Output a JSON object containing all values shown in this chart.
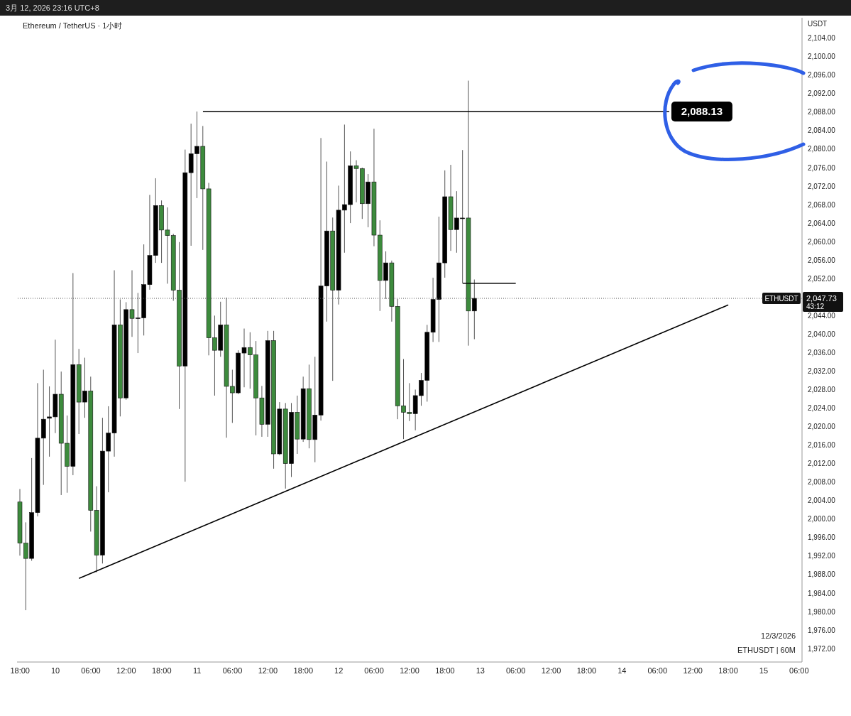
{
  "chart_data": {
    "type": "candlestick",
    "title": "Ethereum / TetherUS · 1小时",
    "subtitle": "3月 12, 2026 23:16 UTC+8",
    "ylabel": "USDT",
    "x": [
      "2026-03-09T18:00",
      "2026-03-09T19:00",
      "2026-03-09T20:00",
      "2026-03-09T21:00",
      "2026-03-09T22:00",
      "2026-03-09T23:00",
      "2026-03-10T00:00",
      "2026-03-10T01:00",
      "2026-03-10T02:00",
      "2026-03-10T03:00",
      "2026-03-10T04:00",
      "2026-03-10T05:00",
      "2026-03-10T06:00",
      "2026-03-10T07:00",
      "2026-03-10T08:00",
      "2026-03-10T09:00",
      "2026-03-10T10:00",
      "2026-03-10T11:00",
      "2026-03-10T12:00",
      "2026-03-10T13:00",
      "2026-03-10T14:00",
      "2026-03-10T15:00",
      "2026-03-10T16:00",
      "2026-03-10T17:00",
      "2026-03-10T18:00",
      "2026-03-10T19:00",
      "2026-03-10T20:00",
      "2026-03-10T21:00",
      "2026-03-10T22:00",
      "2026-03-10T23:00",
      "2026-03-11T00:00",
      "2026-03-11T01:00",
      "2026-03-11T02:00",
      "2026-03-11T03:00",
      "2026-03-11T04:00",
      "2026-03-11T05:00",
      "2026-03-11T06:00",
      "2026-03-11T07:00",
      "2026-03-11T08:00",
      "2026-03-11T09:00",
      "2026-03-11T10:00",
      "2026-03-11T11:00",
      "2026-03-11T12:00",
      "2026-03-11T13:00",
      "2026-03-11T14:00",
      "2026-03-11T15:00",
      "2026-03-11T16:00",
      "2026-03-11T17:00",
      "2026-03-11T18:00",
      "2026-03-11T19:00",
      "2026-03-11T20:00",
      "2026-03-11T21:00",
      "2026-03-11T22:00",
      "2026-03-11T23:00",
      "2026-03-12T00:00",
      "2026-03-12T01:00",
      "2026-03-12T02:00",
      "2026-03-12T03:00",
      "2026-03-12T04:00",
      "2026-03-12T05:00",
      "2026-03-12T06:00",
      "2026-03-12T07:00",
      "2026-03-12T08:00",
      "2026-03-12T09:00",
      "2026-03-12T10:00",
      "2026-03-12T11:00",
      "2026-03-12T12:00",
      "2026-03-12T13:00",
      "2026-03-12T14:00",
      "2026-03-12T15:00",
      "2026-03-12T16:00",
      "2026-03-12T17:00",
      "2026-03-12T18:00",
      "2026-03-12T19:00",
      "2026-03-12T20:00",
      "2026-03-12T21:00",
      "2026-03-12T22:00",
      "2026-03-12T23:00"
    ],
    "ohlc": [
      [
        2003.7,
        2006.5,
        1992.1,
        1994.8
      ],
      [
        1994.8,
        1999.3,
        1980.3,
        1991.5
      ],
      [
        1991.5,
        2013.2,
        1991.0,
        2001.4
      ],
      [
        2001.4,
        2029.4,
        2000.6,
        2017.5
      ],
      [
        2017.5,
        2032.3,
        2007.4,
        2021.6
      ],
      [
        2021.8,
        2028.7,
        2013.5,
        2022.1
      ],
      [
        2022.1,
        2038.8,
        2018.6,
        2027.0
      ],
      [
        2027.0,
        2031.9,
        2005.2,
        2016.4
      ],
      [
        2016.4,
        2022.4,
        2005.7,
        2011.4
      ],
      [
        2011.4,
        2053.2,
        2009.5,
        2033.4
      ],
      [
        2033.4,
        2036.8,
        2018.4,
        2025.3
      ],
      [
        2025.3,
        2034.9,
        2021.9,
        2027.7
      ],
      [
        2027.7,
        2030.8,
        1997.3,
        2001.9
      ],
      [
        2001.9,
        2007.1,
        1988.5,
        1992.2
      ],
      [
        1992.2,
        2021.9,
        1990.4,
        2014.7
      ],
      [
        2014.7,
        2024.4,
        2005.8,
        2018.6
      ],
      [
        2018.6,
        2053.8,
        2013.5,
        2042.0
      ],
      [
        2042.0,
        2047.5,
        2022.2,
        2026.2
      ],
      [
        2026.2,
        2046.9,
        2025.8,
        2045.3
      ],
      [
        2045.3,
        2053.8,
        2039.4,
        2043.4
      ],
      [
        2043.4,
        2048.9,
        2035.9,
        2043.5
      ],
      [
        2043.5,
        2059.4,
        2039.7,
        2050.7
      ],
      [
        2050.7,
        2070.1,
        2049.6,
        2057.0
      ],
      [
        2057.0,
        2073.7,
        2055.4,
        2067.8
      ],
      [
        2067.8,
        2068.9,
        2055.4,
        2062.5
      ],
      [
        2062.5,
        2067.4,
        2050.9,
        2061.3
      ],
      [
        2061.3,
        2061.7,
        2047.2,
        2049.5
      ],
      [
        2049.5,
        2059.9,
        2023.8,
        2033.1
      ],
      [
        2033.1,
        2079.9,
        2008.1,
        2074.9
      ],
      [
        2074.9,
        2085.5,
        2059.1,
        2079.0
      ],
      [
        2079.0,
        2088.13,
        2069.4,
        2080.6
      ],
      [
        2080.6,
        2085.0,
        2058.2,
        2071.4
      ],
      [
        2071.4,
        2072.7,
        2035.4,
        2039.2
      ],
      [
        2039.2,
        2044.0,
        2026.7,
        2036.5
      ],
      [
        2036.5,
        2047.0,
        2035.1,
        2042.0
      ],
      [
        2042.0,
        2047.9,
        2017.6,
        2028.7
      ],
      [
        2028.7,
        2032.3,
        2020.8,
        2027.3
      ],
      [
        2027.3,
        2036.5,
        2027.0,
        2035.9
      ],
      [
        2035.9,
        2041.2,
        2028.5,
        2037.1
      ],
      [
        2037.1,
        2040.4,
        2028.2,
        2035.5
      ],
      [
        2035.5,
        2038.5,
        2018.1,
        2026.2
      ],
      [
        2026.2,
        2028.8,
        2017.8,
        2020.5
      ],
      [
        2020.5,
        2040.7,
        2017.8,
        2038.6
      ],
      [
        2038.6,
        2040.7,
        2010.9,
        2014.1
      ],
      [
        2014.1,
        2025.3,
        2013.8,
        2023.8
      ],
      [
        2023.8,
        2025.1,
        2006.6,
        2012.0
      ],
      [
        2012.0,
        2025.1,
        2009.1,
        2023.1
      ],
      [
        2023.1,
        2026.7,
        2014.1,
        2017.3
      ],
      [
        2017.3,
        2030.8,
        2016.7,
        2028.2
      ],
      [
        2028.2,
        2033.4,
        2015.3,
        2017.2
      ],
      [
        2017.2,
        2035.1,
        2012.3,
        2022.5
      ],
      [
        2022.5,
        2082.4,
        2021.3,
        2050.4
      ],
      [
        2050.4,
        2077.3,
        2042.7,
        2062.3
      ],
      [
        2062.3,
        2065.2,
        2029.9,
        2049.5
      ],
      [
        2049.5,
        2072.1,
        2046.4,
        2066.8
      ],
      [
        2066.8,
        2085.3,
        2057.6,
        2068.0
      ],
      [
        2068.0,
        2079.5,
        2064.0,
        2076.4
      ],
      [
        2076.4,
        2077.6,
        2068.5,
        2075.8
      ],
      [
        2075.8,
        2076.0,
        2064.9,
        2068.2
      ],
      [
        2068.2,
        2074.6,
        2063.1,
        2072.9
      ],
      [
        2072.9,
        2084.4,
        2059.0,
        2061.4
      ],
      [
        2061.4,
        2064.6,
        2045.0,
        2051.6
      ],
      [
        2051.6,
        2057.9,
        2047.6,
        2055.4
      ],
      [
        2055.4,
        2055.9,
        2042.7,
        2046.0
      ],
      [
        2046.0,
        2047.6,
        2021.6,
        2024.5
      ],
      [
        2024.5,
        2034.6,
        2017.3,
        2023.1
      ],
      [
        2023.1,
        2029.4,
        2021.2,
        2022.8
      ],
      [
        2022.8,
        2028.0,
        2019.2,
        2026.7
      ],
      [
        2026.7,
        2031.6,
        2024.5,
        2030.0
      ],
      [
        2030.0,
        2042.0,
        2025.4,
        2040.4
      ],
      [
        2040.4,
        2052.2,
        2038.3,
        2047.5
      ],
      [
        2047.5,
        2065.4,
        2038.3,
        2055.4
      ],
      [
        2055.4,
        2075.4,
        2052.2,
        2069.7
      ],
      [
        2069.7,
        2076.6,
        2058.0,
        2062.6
      ],
      [
        2062.6,
        2070.9,
        2057.6,
        2065.1
      ],
      [
        2065.1,
        2079.8,
        2051.0,
        2065.1
      ],
      [
        2065.1,
        2094.8,
        2037.5,
        2045.0
      ],
      [
        2045.0,
        2051.8,
        2038.9,
        2047.73
      ]
    ],
    "colors": [
      "#3d8b3d",
      "#3d8b3d",
      "#000000",
      "#000000",
      "#000000",
      "#000000",
      "#000000",
      "#3d8b3d",
      "#3d8b3d",
      "#000000",
      "#3d8b3d",
      "#000000",
      "#3d8b3d",
      "#3d8b3d",
      "#000000",
      "#000000",
      "#000000",
      "#3d8b3d",
      "#000000",
      "#3d8b3d",
      "#000000",
      "#000000",
      "#000000",
      "#000000",
      "#3d8b3d",
      "#3d8b3d",
      "#3d8b3d",
      "#3d8b3d",
      "#000000",
      "#000000",
      "#000000",
      "#3d8b3d",
      "#3d8b3d",
      "#3d8b3d",
      "#000000",
      "#3d8b3d",
      "#3d8b3d",
      "#000000",
      "#000000",
      "#3d8b3d",
      "#3d8b3d",
      "#3d8b3d",
      "#000000",
      "#3d8b3d",
      "#000000",
      "#3d8b3d",
      "#000000",
      "#3d8b3d",
      "#000000",
      "#3d8b3d",
      "#000000",
      "#000000",
      "#000000",
      "#3d8b3d",
      "#000000",
      "#000000",
      "#000000",
      "#3d8b3d",
      "#3d8b3d",
      "#000000",
      "#3d8b3d",
      "#3d8b3d",
      "#000000",
      "#3d8b3d",
      "#3d8b3d",
      "#3d8b3d",
      "#3d8b3d",
      "#000000",
      "#000000",
      "#000000",
      "#000000",
      "#000000",
      "#000000",
      "#3d8b3d",
      "#000000",
      "#000000",
      "#3d8b3d",
      "#000000"
    ],
    "series": [
      {
        "type": "line",
        "color": "#000000",
        "x": [
          "2026-03-10T04:00",
          "2026-03-14T18:00"
        ],
        "values": [
          1987.2,
          2046.3
        ]
      },
      {
        "type": "line",
        "color": "#000000",
        "x": [
          "2026-03-11T01:00",
          "2026-03-14T08:00"
        ],
        "values": [
          2088.13,
          2088.13
        ]
      },
      {
        "type": "line",
        "color": "#000000",
        "x": [
          "2026-03-12T21:00",
          "2026-03-13T06:00"
        ],
        "values": [
          2051.0,
          2051.0
        ]
      }
    ],
    "marker": "none",
    "line_style": "solid",
    "xlim": [
      "2026-03-09T17:30",
      "2026-03-15T06:30"
    ],
    "xticks": [
      {
        "value": "2026-03-09T18:00",
        "label": "18:00"
      },
      {
        "value": "2026-03-10T00:00",
        "label": "10"
      },
      {
        "value": "2026-03-10T06:00",
        "label": "06:00"
      },
      {
        "value": "2026-03-10T12:00",
        "label": "12:00"
      },
      {
        "value": "2026-03-10T18:00",
        "label": "18:00"
      },
      {
        "value": "2026-03-11T00:00",
        "label": "11"
      },
      {
        "value": "2026-03-11T06:00",
        "label": "06:00"
      },
      {
        "value": "2026-03-11T12:00",
        "label": "12:00"
      },
      {
        "value": "2026-03-11T18:00",
        "label": "18:00"
      },
      {
        "value": "2026-03-12T00:00",
        "label": "12"
      },
      {
        "value": "2026-03-12T06:00",
        "label": "06:00"
      },
      {
        "value": "2026-03-12T12:00",
        "label": "12:00"
      },
      {
        "value": "2026-03-12T18:00",
        "label": "18:00"
      },
      {
        "value": "2026-03-13T00:00",
        "label": "13"
      },
      {
        "value": "2026-03-13T06:00",
        "label": "06:00"
      },
      {
        "value": "2026-03-13T12:00",
        "label": "12:00"
      },
      {
        "value": "2026-03-13T18:00",
        "label": "18:00"
      },
      {
        "value": "2026-03-14T00:00",
        "label": "14"
      },
      {
        "value": "2026-03-14T06:00",
        "label": "06:00"
      },
      {
        "value": "2026-03-14T12:00",
        "label": "12:00"
      },
      {
        "value": "2026-03-14T18:00",
        "label": "18:00"
      },
      {
        "value": "2026-03-15T00:00",
        "label": "15"
      },
      {
        "value": "2026-03-15T06:00",
        "label": "06:00"
      }
    ],
    "ylim": [
      1969.1,
      2108.4
    ],
    "yticks": [
      {
        "value": 1972,
        "label": "1,972.00"
      },
      {
        "value": 1976,
        "label": "1,976.00"
      },
      {
        "value": 1980,
        "label": "1,980.00"
      },
      {
        "value": 1984,
        "label": "1,984.00"
      },
      {
        "value": 1988,
        "label": "1,988.00"
      },
      {
        "value": 1992,
        "label": "1,992.00"
      },
      {
        "value": 1996,
        "label": "1,996.00"
      },
      {
        "value": 2000,
        "label": "2,000.00"
      },
      {
        "value": 2004,
        "label": "2,004.00"
      },
      {
        "value": 2008,
        "label": "2,008.00"
      },
      {
        "value": 2012,
        "label": "2,012.00"
      },
      {
        "value": 2016,
        "label": "2,016.00"
      },
      {
        "value": 2020,
        "label": "2,020.00"
      },
      {
        "value": 2024,
        "label": "2,024.00"
      },
      {
        "value": 2028,
        "label": "2,028.00"
      },
      {
        "value": 2032,
        "label": "2,032.00"
      },
      {
        "value": 2036,
        "label": "2,036.00"
      },
      {
        "value": 2040,
        "label": "2,040.00"
      },
      {
        "value": 2044,
        "label": "2,044.00"
      },
      {
        "value": 2052,
        "label": "2,052.00"
      },
      {
        "value": 2056,
        "label": "2,056.00"
      },
      {
        "value": 2060,
        "label": "2,060.00"
      },
      {
        "value": 2064,
        "label": "2,064.00"
      },
      {
        "value": 2068,
        "label": "2,068.00"
      },
      {
        "value": 2072,
        "label": "2,072.00"
      },
      {
        "value": 2076,
        "label": "2,076.00"
      },
      {
        "value": 2080,
        "label": "2,080.00"
      },
      {
        "value": 2084,
        "label": "2,084.00"
      },
      {
        "value": 2088,
        "label": "2,088.00"
      },
      {
        "value": 2092,
        "label": "2,092.00"
      },
      {
        "value": 2096,
        "label": "2,096.00"
      },
      {
        "value": 2100,
        "label": "2,100.00"
      },
      {
        "value": 2104,
        "label": "2,104.00"
      }
    ],
    "ref_lines": [
      {
        "axis": "y",
        "value": 2047.73,
        "label": "ETHUSDT",
        "color": "#555555",
        "line_style": "dotted"
      }
    ],
    "annotations": [
      "2,047.73",
      "43:12",
      "12/3/2026",
      "ETHUSDT | 60M",
      {
        "text": "2,088.13",
        "x": "2026-03-14T08:00",
        "y": 2088.13
      }
    ]
  }
}
